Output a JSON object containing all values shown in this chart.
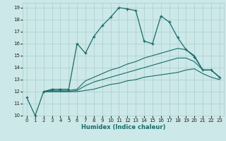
{
  "xlabel": "Humidex (Indice chaleur)",
  "bg_color": "#cce8e8",
  "grid_color": "#aacece",
  "line_color": "#1a6b6b",
  "xlim": [
    -0.5,
    23.5
  ],
  "ylim": [
    10,
    19.4
  ],
  "yticks": [
    10,
    11,
    12,
    13,
    14,
    15,
    16,
    17,
    18,
    19
  ],
  "xticks": [
    0,
    1,
    2,
    3,
    4,
    5,
    6,
    7,
    8,
    9,
    10,
    11,
    12,
    13,
    14,
    15,
    16,
    17,
    18,
    19,
    20,
    21,
    22,
    23
  ],
  "series": [
    {
      "x": [
        0,
        1,
        2,
        3,
        4,
        5,
        6,
        7,
        8,
        9,
        10,
        11,
        12,
        13,
        14,
        15,
        16,
        17,
        18,
        19,
        20,
        21,
        22,
        23
      ],
      "y": [
        11.5,
        10.0,
        12.0,
        12.2,
        12.2,
        12.2,
        16.0,
        15.2,
        16.6,
        17.5,
        18.2,
        19.0,
        18.9,
        18.75,
        16.2,
        16.0,
        18.3,
        17.8,
        16.5,
        15.5,
        14.9,
        13.8,
        13.8,
        13.2
      ],
      "marker": true
    },
    {
      "x": [
        2,
        3,
        4,
        5,
        6,
        7,
        8,
        9,
        10,
        11,
        12,
        13,
        14,
        15,
        16,
        17,
        18,
        19,
        20,
        21,
        22,
        23
      ],
      "y": [
        12.0,
        12.1,
        12.1,
        12.1,
        12.2,
        12.9,
        13.2,
        13.5,
        13.8,
        14.0,
        14.3,
        14.5,
        14.8,
        15.0,
        15.2,
        15.4,
        15.6,
        15.5,
        15.0,
        13.8,
        13.8,
        13.2
      ],
      "marker": false
    },
    {
      "x": [
        2,
        3,
        4,
        5,
        6,
        7,
        8,
        9,
        10,
        11,
        12,
        13,
        14,
        15,
        16,
        17,
        18,
        19,
        20,
        21,
        22,
        23
      ],
      "y": [
        12.0,
        12.0,
        12.0,
        12.0,
        12.1,
        12.5,
        12.8,
        13.0,
        13.2,
        13.4,
        13.6,
        13.8,
        14.0,
        14.2,
        14.4,
        14.6,
        14.8,
        14.8,
        14.5,
        13.8,
        13.8,
        13.2
      ],
      "marker": false
    },
    {
      "x": [
        2,
        3,
        4,
        5,
        6,
        7,
        8,
        9,
        10,
        11,
        12,
        13,
        14,
        15,
        16,
        17,
        18,
        19,
        20,
        21,
        22,
        23
      ],
      "y": [
        12.0,
        12.0,
        12.0,
        12.0,
        12.0,
        12.1,
        12.2,
        12.4,
        12.6,
        12.7,
        12.9,
        13.0,
        13.2,
        13.3,
        13.4,
        13.5,
        13.6,
        13.8,
        13.9,
        13.5,
        13.2,
        13.0
      ],
      "marker": false
    }
  ]
}
